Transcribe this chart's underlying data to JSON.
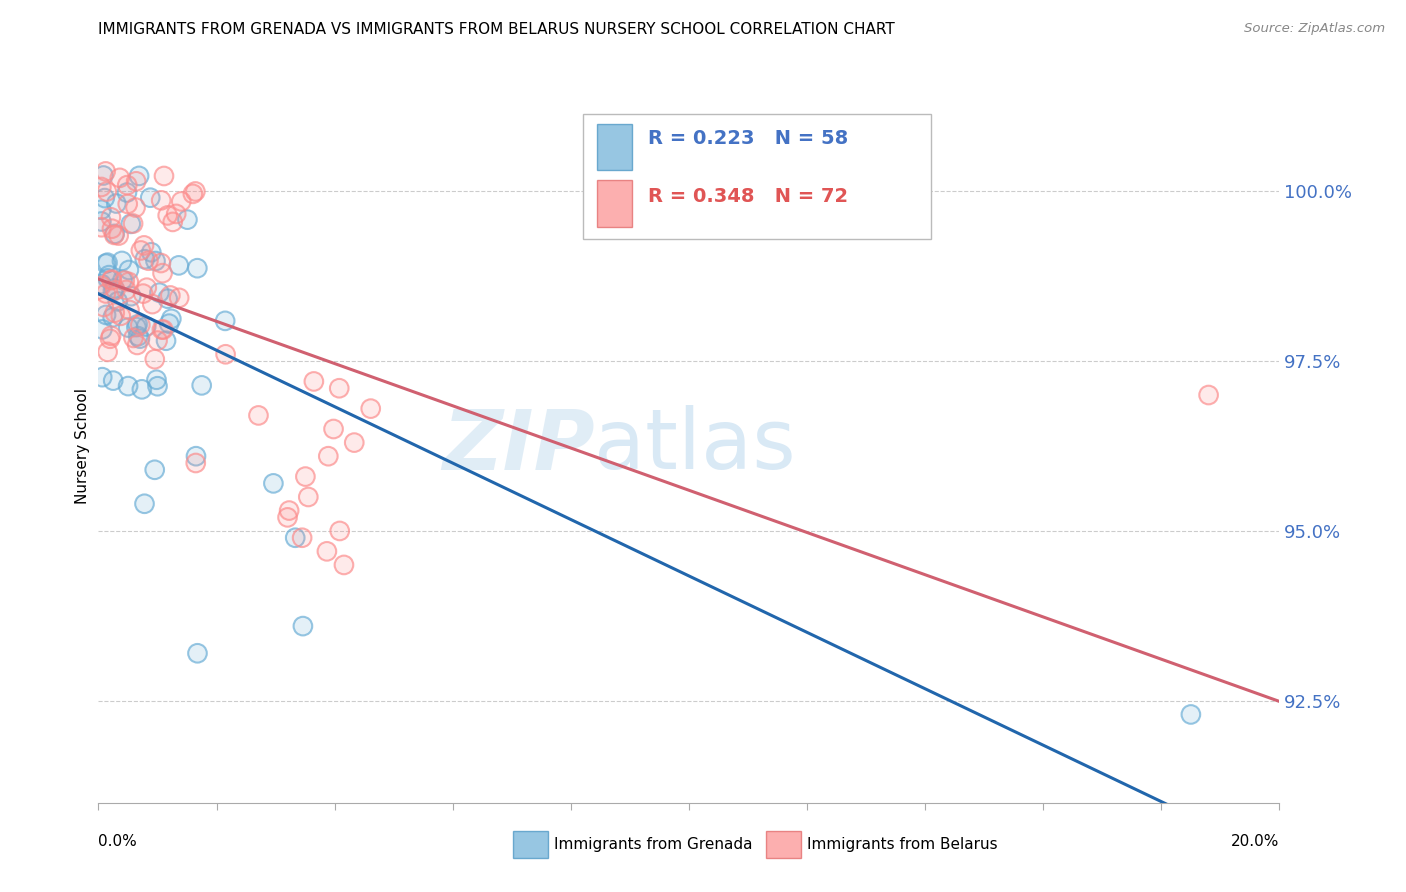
{
  "title": "IMMIGRANTS FROM GRENADA VS IMMIGRANTS FROM BELARUS NURSERY SCHOOL CORRELATION CHART",
  "source": "Source: ZipAtlas.com",
  "ylabel": "Nursery School",
  "grenada_color": "#6baed6",
  "belarus_color": "#fc8d8d",
  "grenada_edge": "#4090c0",
  "belarus_edge": "#e06060",
  "trend_grenada": "#2166ac",
  "trend_belarus": "#d06070",
  "grenada_label": "Immigrants from Grenada",
  "belarus_label": "Immigrants from Belarus",
  "grenada_R": 0.223,
  "grenada_N": 58,
  "belarus_R": 0.348,
  "belarus_N": 72,
  "background_color": "#ffffff",
  "grid_color": "#cccccc",
  "watermark_zip": "ZIP",
  "watermark_atlas": "atlas",
  "x_range": [
    0.0,
    20.0
  ],
  "y_range": [
    91.0,
    101.5
  ],
  "y_ticks": [
    92.5,
    95.0,
    97.5,
    100.0
  ],
  "y_tick_labels": [
    "92.5%",
    "95.0%",
    "97.5%",
    "100.0%"
  ],
  "right_tick_color": "#4472c4",
  "legend_box_color": "#dddddd",
  "legend_text_color": "#4472c4"
}
